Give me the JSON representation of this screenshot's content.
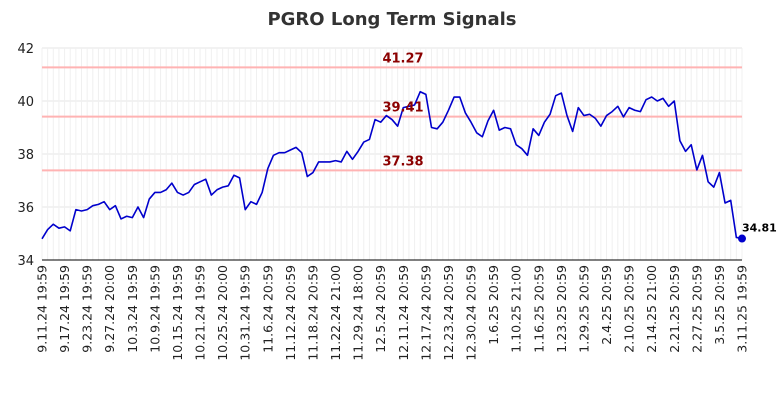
{
  "chart_data": {
    "type": "line",
    "title": "PGRO Long Term Signals",
    "xlabel": "",
    "ylabel": "",
    "ylim": [
      34,
      42
    ],
    "yticks": [
      "34",
      "36",
      "38",
      "40",
      "42"
    ],
    "grid": true,
    "x_tick_labels": [
      "9.11.24 19:59",
      "9.17.24 19:59",
      "9.23.24 19:59",
      "9.27.24 20:00",
      "10.3.24 19:59",
      "10.9.24 19:59",
      "10.15.24 19:59",
      "10.21.24 19:59",
      "10.25.24 20:00",
      "10.31.24 19:59",
      "11.6.24 20:59",
      "11.12.24 20:59",
      "11.18.24 20:59",
      "11.22.24 21:00",
      "11.29.24 18:00",
      "12.5.24 20:59",
      "12.11.24 20:59",
      "12.17.24 20:59",
      "12.23.24 20:59",
      "12.30.24 20:59",
      "1.6.25 20:59",
      "1.10.25 21:00",
      "1.16.25 20:59",
      "1.23.25 20:59",
      "1.29.25 20:59",
      "2.4.25 20:59",
      "2.10.25 20:59",
      "2.14.25 21:00",
      "2.21.25 20:59",
      "2.27.25 20:59",
      "3.5.25 20:59",
      "3.11.25 19:59"
    ],
    "series": [
      {
        "color": "#0000cc",
        "values": [
          34.8,
          35.15,
          35.35,
          35.2,
          35.25,
          35.1,
          35.9,
          35.85,
          35.9,
          36.05,
          36.1,
          36.2,
          35.9,
          36.05,
          35.55,
          35.65,
          35.6,
          36.0,
          35.6,
          36.3,
          36.55,
          36.55,
          36.65,
          36.9,
          36.55,
          36.45,
          36.55,
          36.85,
          36.95,
          37.05,
          36.45,
          36.65,
          36.75,
          36.8,
          37.2,
          37.1,
          35.9,
          36.2,
          36.1,
          36.55,
          37.45,
          37.95,
          38.05,
          38.05,
          38.15,
          38.25,
          38.05,
          37.15,
          37.3,
          37.7,
          37.7,
          37.7,
          37.75,
          37.7,
          38.1,
          37.8,
          38.1,
          38.45,
          38.55,
          39.3,
          39.2,
          39.45,
          39.3,
          39.05,
          39.75,
          39.8,
          39.85,
          40.35,
          40.25,
          39.0,
          38.95,
          39.2,
          39.65,
          40.15,
          40.15,
          39.55,
          39.2,
          38.8,
          38.65,
          39.25,
          39.65,
          38.9,
          39.0,
          38.95,
          38.35,
          38.2,
          37.95,
          38.95,
          38.7,
          39.2,
          39.5,
          40.2,
          40.3,
          39.45,
          38.85,
          39.75,
          39.45,
          39.5,
          39.35,
          39.05,
          39.45,
          39.6,
          39.8,
          39.4,
          39.75,
          39.65,
          39.6,
          40.05,
          40.15,
          40.0,
          40.1,
          39.8,
          40.0,
          38.5,
          38.1,
          38.35,
          37.4,
          37.95,
          36.95,
          36.75,
          37.3,
          36.15,
          36.25,
          34.85,
          34.81
        ]
      }
    ],
    "hlines": [
      {
        "value": 41.27,
        "label": "41.27"
      },
      {
        "value": 39.41,
        "label": "39.41"
      },
      {
        "value": 37.38,
        "label": "37.38"
      }
    ],
    "last_point": {
      "value": 34.81,
      "label": "34.81"
    },
    "colors": {
      "line": "#0000cc",
      "hline": "#ffb3b3",
      "annotation": "#8b0000",
      "grid": "#e6e6e6"
    }
  }
}
